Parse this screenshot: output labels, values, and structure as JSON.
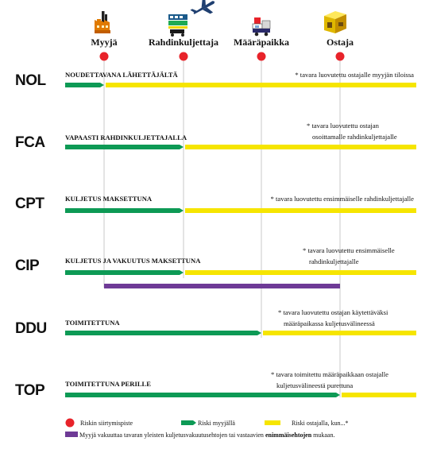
{
  "parties": [
    {
      "label": "Myyjä",
      "icon": "factory-icon"
    },
    {
      "label": "Rahdinkuljettaja",
      "icon": "train-truck-airplane-icon"
    },
    {
      "label": "Määräpaikka",
      "icon": "truck-icon"
    },
    {
      "label": "Ostaja",
      "icon": "warehouse-icon"
    }
  ],
  "terms": [
    {
      "code": "NOL",
      "title": "NOUDETTAVANA LÄHETTÄJÄLTÄ",
      "note": [
        "* tavara luovutettu ostajalle myyjän tiloissa"
      ],
      "seller_risk_until": "Myyjä",
      "insurance": false
    },
    {
      "code": "FCA",
      "title": "VAPAASTI RAHDINKULJETTAJALLA",
      "note": [
        "* tavara luovutettu ostajan",
        "osoittamalle rahdinkuljettajalle"
      ],
      "seller_risk_until": "Rahdinkuljettaja",
      "insurance": false
    },
    {
      "code": "CPT",
      "title": "KULJETUS MAKSETTUNA",
      "note": [
        "* tavara luovutettu ensimmäiselle rahdinkuljettajalle"
      ],
      "seller_risk_until": "Rahdinkuljettaja",
      "insurance": false
    },
    {
      "code": "CIP",
      "title": "KULJETUS JA VAKUUTUS MAKSETTUNA",
      "note": [
        "* tavara luovutettu ensimmäiselle",
        "rahdinkuljettajalle"
      ],
      "seller_risk_until": "Rahdinkuljettaja",
      "insurance": true
    },
    {
      "code": "DDU",
      "title": "TOIMITETTUNA",
      "note": [
        "* tavara luovutettu ostajan käytettäväksi",
        "määräpaikassa kuljetusvälineessä"
      ],
      "seller_risk_until": "Määräpaikka",
      "insurance": false
    },
    {
      "code": "TOP",
      "title": "TOIMITETTUNA PERILLE",
      "note": [
        "* tavara toimitettu määräpaikkaan ostajalle",
        "kuljetusvälineestä purettuna"
      ],
      "seller_risk_until": "Ostaja",
      "insurance": false
    }
  ],
  "legend": {
    "risk_transfer": "Riskin siirtymispiste",
    "seller_risk": "Riski myyjällä",
    "buyer_risk": "Riski ostajalla, kun...*",
    "insurance_prefix": "Myyjä  vakuuttaa tavaran yleisten kuljetusvakuutusehtojen tai vastaavien ",
    "insurance_bold": "enimmäisehtojen",
    "insurance_suffix": " mukaan."
  },
  "colors": {
    "seller_risk": "#0d9a55",
    "buyer_risk": "#f6e500",
    "insurance": "#6e3a96",
    "transfer_point": "#e8232a",
    "guide_line": "#bdbdbd"
  }
}
